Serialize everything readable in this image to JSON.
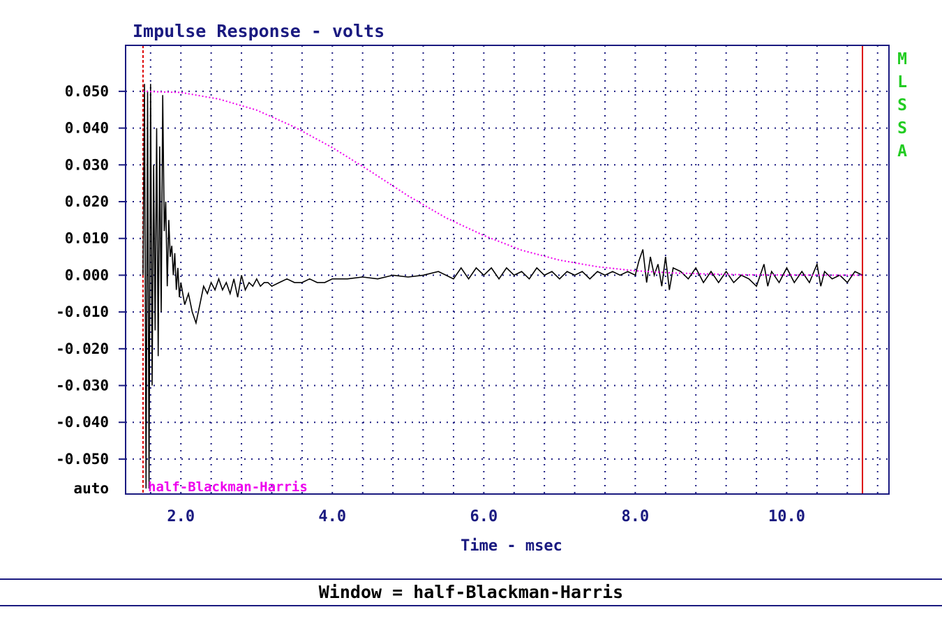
{
  "colors": {
    "frame": "#1a1a80",
    "grid": "#1a1a80",
    "trace": "#000000",
    "window_curve": "#ee00ee",
    "window_start_marker": "#dd0000",
    "window_end_marker": "#dd0000",
    "badge": "#22cc22"
  },
  "chart_data": {
    "type": "line",
    "title": "Impulse Response - volts",
    "xlabel": "Time - msec",
    "ylabel": "",
    "xlim": [
      1.27,
      11.35
    ],
    "ylim": [
      -0.0595,
      0.0625
    ],
    "x_ticks": [
      2.0,
      4.0,
      6.0,
      8.0,
      10.0
    ],
    "x_tick_labels": [
      "2.0",
      "4.0",
      "6.0",
      "8.0",
      "10.0"
    ],
    "y_ticks": [
      0.05,
      0.04,
      0.03,
      0.02,
      0.01,
      0.0,
      -0.01,
      -0.02,
      -0.03,
      -0.04,
      -0.05
    ],
    "y_tick_labels": [
      "0.050",
      "0.040",
      "0.030",
      "0.020",
      "0.010",
      "0.000",
      "-0.010",
      "-0.020",
      "-0.030",
      "-0.040",
      "-0.050"
    ],
    "y_scale_label": "auto",
    "grid": true,
    "grid_style": "dotted",
    "x_grid_step": 0.4,
    "badge_letters": [
      "M",
      "L",
      "S",
      "S",
      "A"
    ],
    "window_label": "half-Blackman-Harris",
    "window_start": 1.5,
    "window_end": 11.0,
    "series": [
      {
        "role": "impulse",
        "x": [
          1.5,
          1.52,
          1.54,
          1.56,
          1.58,
          1.6,
          1.62,
          1.64,
          1.66,
          1.68,
          1.7,
          1.72,
          1.74,
          1.76,
          1.78,
          1.8,
          1.82,
          1.84,
          1.86,
          1.88,
          1.9,
          1.92,
          1.94,
          1.96,
          1.98,
          2.0,
          2.05,
          2.1,
          2.15,
          2.2,
          2.25,
          2.3,
          2.35,
          2.4,
          2.45,
          2.5,
          2.55,
          2.6,
          2.65,
          2.7,
          2.75,
          2.8,
          2.85,
          2.9,
          2.95,
          3.0,
          3.05,
          3.1,
          3.15,
          3.2,
          3.3,
          3.4,
          3.5,
          3.6,
          3.7,
          3.8,
          3.9,
          4.0,
          4.2,
          4.4,
          4.6,
          4.8,
          5.0,
          5.2,
          5.4,
          5.6,
          5.7,
          5.8,
          5.9,
          6.0,
          6.1,
          6.2,
          6.3,
          6.4,
          6.5,
          6.6,
          6.7,
          6.8,
          6.9,
          7.0,
          7.1,
          7.2,
          7.3,
          7.4,
          7.5,
          7.6,
          7.7,
          7.8,
          7.9,
          8.0,
          8.05,
          8.1,
          8.15,
          8.2,
          8.25,
          8.3,
          8.35,
          8.4,
          8.45,
          8.5,
          8.6,
          8.7,
          8.8,
          8.9,
          9.0,
          9.1,
          9.2,
          9.3,
          9.4,
          9.5,
          9.6,
          9.7,
          9.75,
          9.8,
          9.9,
          10.0,
          10.1,
          10.2,
          10.3,
          10.4,
          10.45,
          10.5,
          10.6,
          10.7,
          10.8,
          10.9,
          11.0
        ],
        "y": [
          0.0,
          0.052,
          -0.058,
          0.05,
          -0.058,
          0.052,
          -0.03,
          0.03,
          -0.015,
          0.04,
          -0.022,
          0.035,
          -0.01,
          0.049,
          0.012,
          0.02,
          -0.003,
          0.015,
          0.005,
          0.008,
          0.0,
          0.006,
          -0.004,
          0.002,
          -0.006,
          -0.002,
          -0.008,
          -0.005,
          -0.01,
          -0.013,
          -0.008,
          -0.003,
          -0.005,
          -0.002,
          -0.004,
          -0.001,
          -0.004,
          -0.002,
          -0.005,
          -0.001,
          -0.006,
          0.0,
          -0.004,
          -0.002,
          -0.003,
          -0.001,
          -0.003,
          -0.002,
          -0.002,
          -0.003,
          -0.002,
          -0.001,
          -0.002,
          -0.002,
          -0.001,
          -0.002,
          -0.002,
          -0.001,
          -0.001,
          -0.0005,
          -0.001,
          0.0,
          -0.0005,
          0.0,
          0.001,
          -0.001,
          0.002,
          -0.001,
          0.002,
          0.0,
          0.002,
          -0.001,
          0.002,
          0.0,
          0.001,
          -0.001,
          0.002,
          0.0,
          0.001,
          -0.001,
          0.001,
          0.0,
          0.001,
          -0.001,
          0.001,
          0.0,
          0.001,
          0.0,
          0.001,
          0.0,
          0.004,
          0.007,
          -0.002,
          0.005,
          0.0,
          0.003,
          -0.003,
          0.005,
          -0.004,
          0.002,
          0.001,
          -0.001,
          0.002,
          -0.002,
          0.001,
          -0.002,
          0.001,
          -0.002,
          0.0,
          -0.001,
          -0.003,
          0.003,
          -0.003,
          0.001,
          -0.002,
          0.002,
          -0.002,
          0.001,
          -0.002,
          0.003,
          -0.003,
          0.001,
          -0.001,
          0.0,
          -0.002,
          0.001,
          0.0
        ]
      },
      {
        "role": "window",
        "x": [
          1.5,
          2.0,
          2.5,
          3.0,
          3.5,
          4.0,
          4.5,
          5.0,
          5.5,
          6.0,
          6.5,
          7.0,
          7.5,
          8.0,
          8.5,
          9.0,
          9.5,
          10.0,
          10.5,
          11.0
        ],
        "y": [
          0.05,
          0.0497,
          0.0479,
          0.0449,
          0.0403,
          0.0347,
          0.0283,
          0.0216,
          0.0156,
          0.0108,
          0.0068,
          0.0041,
          0.0023,
          0.0012,
          0.0006,
          0.0003,
          0.0001,
          5e-05,
          0.0,
          0.0
        ]
      }
    ]
  },
  "footer": {
    "text": "Window = half-Blackman-Harris"
  }
}
